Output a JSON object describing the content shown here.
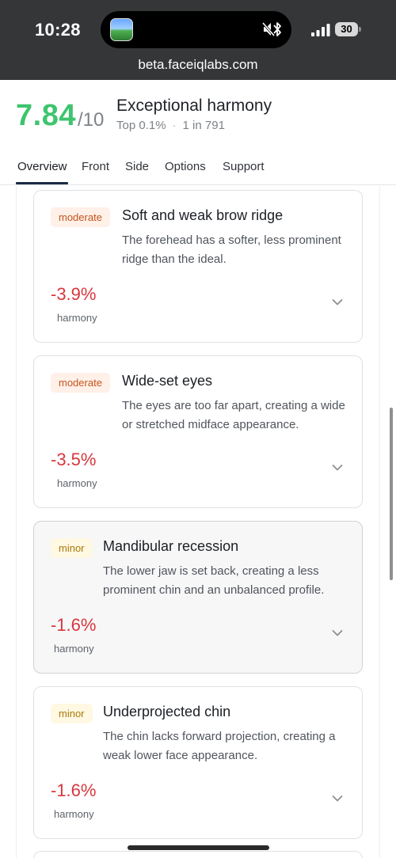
{
  "status_bar": {
    "time": "10:28",
    "battery": "30"
  },
  "browser": {
    "url": "beta.faceiqlabs.com"
  },
  "header": {
    "score": "7.84",
    "score_max": "/10",
    "title": "Exceptional harmony",
    "percentile": "Top 0.1%",
    "separator": "·",
    "rarity": "1 in 791"
  },
  "tabs": [
    {
      "label": "Overview",
      "active": true
    },
    {
      "label": "Front"
    },
    {
      "label": "Side"
    },
    {
      "label": "Options"
    },
    {
      "label": "Support"
    }
  ],
  "cards": [
    {
      "severity": "moderate",
      "title": "Soft and weak brow ridge",
      "description": "The forehead has a softer, less prominent ridge than the ideal.",
      "impact": "-3.9%",
      "impact_label": "harmony"
    },
    {
      "severity": "moderate",
      "title": "Wide-set eyes",
      "description": "The eyes are too far apart, creating a wide or stretched midface appearance.",
      "impact": "-3.5%",
      "impact_label": "harmony"
    },
    {
      "severity": "minor",
      "title": "Mandibular recession",
      "description": "The lower jaw is set back, creating a less prominent chin and an unbalanced profile.",
      "impact": "-1.6%",
      "impact_label": "harmony"
    },
    {
      "severity": "minor",
      "title": "Underprojected chin",
      "description": "The chin lacks forward projection, creating a weak lower face appearance.",
      "impact": "-1.6%",
      "impact_label": "harmony"
    }
  ],
  "colors": {
    "score_green": "#3ec46d",
    "impact_red": "#d9363e",
    "moderate_text": "#c4541e",
    "minor_text": "#a97a0a"
  },
  "icons": [
    "mute-icon",
    "bluetooth-icon",
    "signal-icon",
    "battery-icon",
    "chevron-down-icon"
  ]
}
